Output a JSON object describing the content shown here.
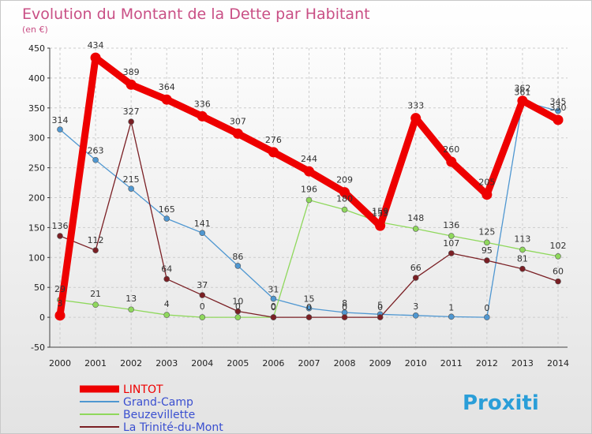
{
  "chart_data": {
    "type": "line",
    "title": "Evolution du Montant de la Dette par Habitant",
    "unit_label": "(en €)",
    "x": [
      "2000",
      "2001",
      "2002",
      "2003",
      "2004",
      "2005",
      "2006",
      "2007",
      "2008",
      "2009",
      "2010",
      "2011",
      "2012",
      "2013",
      "2014"
    ],
    "ylim": [
      -50,
      450
    ],
    "yticks": [
      -50,
      0,
      50,
      100,
      150,
      200,
      250,
      300,
      350,
      400,
      450
    ],
    "grid": true,
    "legend_position": "bottom-left",
    "series": [
      {
        "name": "LINTOT",
        "color": "#ee0000",
        "values": [
          3,
          434,
          389,
          364,
          336,
          307,
          276,
          244,
          209,
          153,
          333,
          260,
          205,
          362,
          330
        ]
      },
      {
        "name": "Grand-Camp",
        "color": "#4f97d1",
        "values": [
          314,
          263,
          215,
          165,
          141,
          86,
          31,
          15,
          8,
          5,
          3,
          1,
          0,
          361,
          345
        ]
      },
      {
        "name": "Beuzevillette",
        "color": "#8fd85c",
        "values": [
          29,
          21,
          13,
          4,
          0,
          0,
          0,
          196,
          180,
          159,
          148,
          136,
          125,
          113,
          102
        ]
      },
      {
        "name": "La Trinité-du-Mont",
        "color": "#7a1f24",
        "values": [
          136,
          112,
          327,
          64,
          37,
          10,
          0,
          0,
          0,
          0,
          66,
          107,
          95,
          81,
          60
        ]
      }
    ]
  },
  "logo": {
    "text": "Proxiti"
  }
}
